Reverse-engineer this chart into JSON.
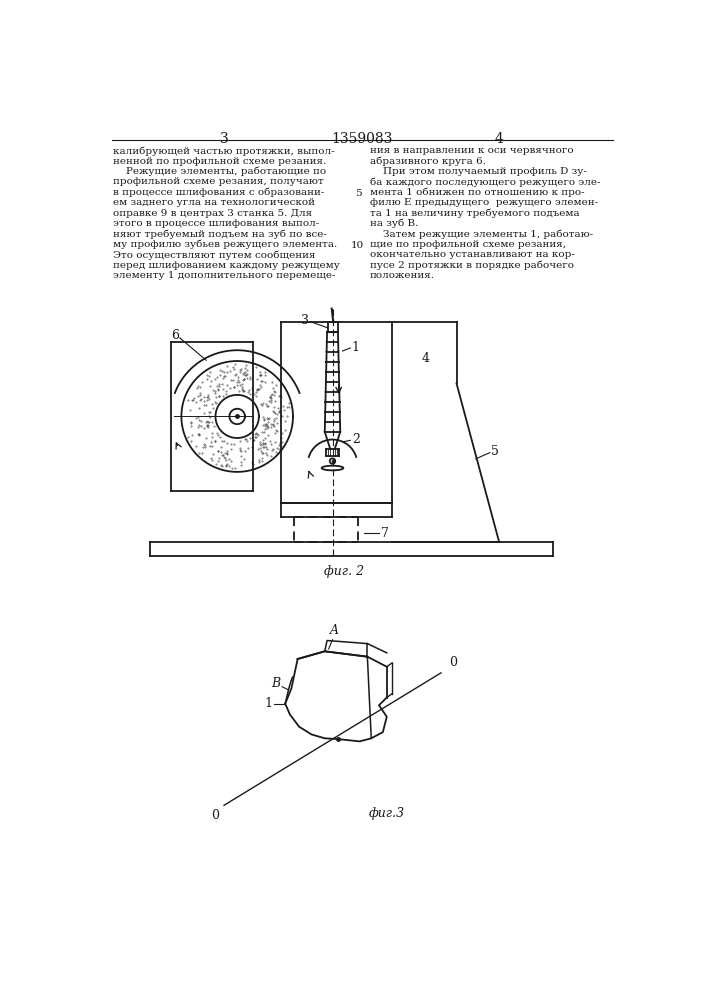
{
  "bg_color": "#ffffff",
  "line_color": "#1a1a1a",
  "text_color": "#1a1a1a",
  "page_width": 7.07,
  "page_height": 10.0,
  "header": {
    "left_num": "3",
    "center_num": "1359083",
    "right_num": "4"
  },
  "left_col_text": [
    "калибрующей частью протяжки, выпол-",
    "ненной по профильной схеме резания.",
    "    Режущие элементы, работающие по",
    "профильной схеме резания, получают",
    "в процессе шлифования с образовани-",
    "ем заднего угла на технологической",
    "оправке 9 в центрах 3 станка 5. Для",
    "этого в процессе шлифования выпол-",
    "няют требуемый подъем на зуб по все-",
    "му профилю зубьев режущего элемента.",
    "Это осуществляют путем сообщения",
    "перед шлифованием каждому режущему",
    "элементу 1 дополнительного перемеще-"
  ],
  "right_col_text": [
    "ния в направлении к оси червячного",
    "абразивного круга 6.",
    "    При этом получаемый профиль D зу-",
    "ба каждого последующего режущего эле-",
    "мента 1 обнижен по отношению к про-",
    "филю Е предыдущего  режущего элемен-",
    "та 1 на величину требуемого подъема",
    "на зуб В.",
    "    Затем режущие элементы 1, работаю-",
    "щие по профильной схеме резания,",
    "окончательно устанавливают на кор-",
    "пусе 2 протяжки в порядке рабочего",
    "положения."
  ],
  "fig2_caption": "фиг. 2",
  "fig3_caption": "фиг.3",
  "line_number_5_row": 4,
  "line_number_10_row": 9
}
